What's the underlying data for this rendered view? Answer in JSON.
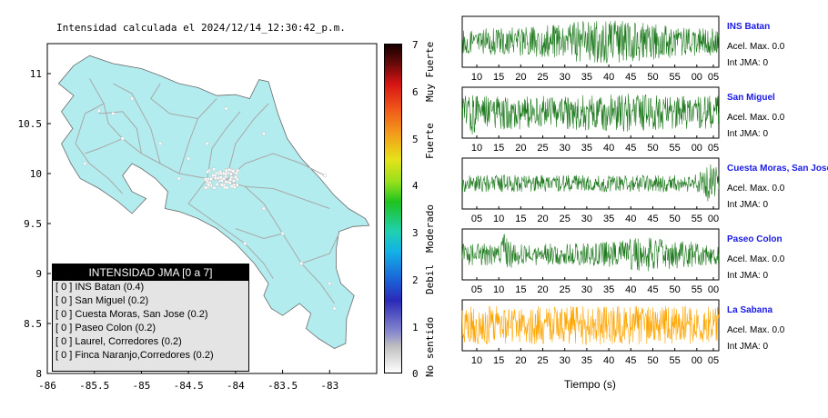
{
  "map": {
    "title": "Intensidad calculada el 2024/12/14_12:30:42_p.m.",
    "lon_ticks": [
      "-86",
      "-85.5",
      "-85",
      "-84.5",
      "-84",
      "-83.5",
      "-83"
    ],
    "lat_ticks": [
      "8",
      "8.5",
      "9",
      "9.5",
      "10",
      "10.5",
      "11"
    ],
    "xlim": [
      -86,
      -82.5
    ],
    "ylim": [
      8,
      11.3
    ],
    "land_color": "#b3ecee",
    "road_color": "#a8a8a8"
  },
  "legend": {
    "title": "INTENSIDAD JMA [0 a 7]",
    "items": [
      "[ 0 ]  INS Batan (0.4)",
      "[ 0 ]  San Miguel (0.2)",
      "[ 0 ]  Cuesta Moras, San Jose (0.2)",
      "[ 0 ]  Paseo Colon (0.2)",
      "[ 0 ]  Laurel, Corredores (0.2)",
      "[ 0 ]  Finca Naranjo,Corredores (0.2)"
    ]
  },
  "colorbar": {
    "ticks": [
      "0",
      "1",
      "2",
      "3",
      "4",
      "5",
      "6",
      "7"
    ],
    "categories": [
      "No sentido",
      "Debil",
      "Moderado",
      "Fuerte",
      "Muy Fuerte"
    ]
  },
  "stations": [
    {
      "name": "INS Batan",
      "acel": "Acel. Max. 0.0",
      "int": "Int JMA: 0",
      "color": "#1e7a1e",
      "xticks": [
        "10",
        "15",
        "20",
        "25",
        "30",
        "35",
        "40",
        "45",
        "50",
        "55",
        "00",
        "05"
      ],
      "amp": 0.55,
      "seed": 3,
      "bursts": [
        [
          0.55,
          0.25,
          0.9
        ]
      ]
    },
    {
      "name": "San Miguel",
      "acel": "Acel. Max. 0.0",
      "int": "Int JMA: 0",
      "color": "#1e7a1e",
      "xticks": [
        "10",
        "15",
        "20",
        "25",
        "30",
        "35",
        "40",
        "45",
        "50",
        "55",
        "00",
        "05"
      ],
      "amp": 0.7,
      "seed": 7,
      "bursts": [
        [
          0.03,
          0.02,
          1.0
        ],
        [
          0.6,
          0.12,
          0.8
        ]
      ]
    },
    {
      "name": "Cuesta Moras, San Jose",
      "acel": "Acel. Max. 0.0",
      "int": "Int JMA: 0",
      "color": "#1e7a1e",
      "xticks": [
        "05",
        "10",
        "15",
        "20",
        "25",
        "30",
        "35",
        "40",
        "45",
        "50",
        "55",
        "00"
      ],
      "amp": 0.35,
      "seed": 11,
      "bursts": [
        [
          0.97,
          0.04,
          0.8
        ]
      ]
    },
    {
      "name": "Paseo Colon",
      "acel": "Acel. Max. 0.0",
      "int": "Int JMA: 0",
      "color": "#1e7a1e",
      "xticks": [
        "05",
        "10",
        "15",
        "20",
        "25",
        "30",
        "35",
        "40",
        "45",
        "50",
        "55",
        "00"
      ],
      "amp": 0.45,
      "seed": 17,
      "bursts": [
        [
          0.17,
          0.02,
          1.0
        ],
        [
          0.72,
          0.15,
          0.7
        ]
      ]
    },
    {
      "name": "La Sabana",
      "acel": "Acel. Max. 0.0",
      "int": "Int JMA: 0",
      "color": "#ffa500",
      "xticks": [
        "10",
        "15",
        "20",
        "25",
        "30",
        "35",
        "40",
        "45",
        "50",
        "55",
        "00",
        "05"
      ],
      "amp": 0.8,
      "seed": 23,
      "bursts": []
    }
  ],
  "time_label": "Tiempo (s)"
}
